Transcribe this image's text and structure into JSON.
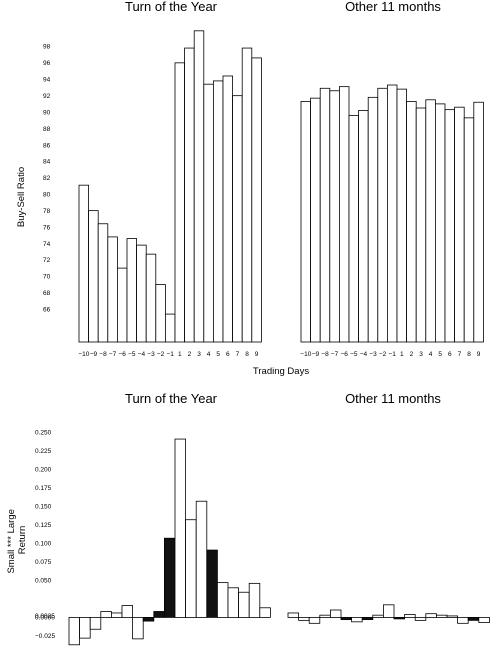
{
  "chart_data": [
    {
      "type": "bar",
      "title": "Turn of the Year",
      "ylabel": "Buy-Sell Ratio",
      "xlabel": "Trading Days",
      "categories": [
        "-10",
        "-9",
        "-8",
        "-7",
        "-6",
        "-5",
        "-4",
        "-3",
        "-2",
        "-1",
        "1",
        "2",
        "3",
        "4",
        "5",
        "6",
        "7",
        "8",
        "9"
      ],
      "values": [
        81.1,
        78.0,
        76.4,
        74.8,
        71.0,
        74.6,
        73.8,
        72.7,
        69.0,
        65.4,
        96.0,
        97.8,
        99.9,
        93.4,
        93.8,
        94.4,
        92.0,
        97.8,
        96.6
      ],
      "ylim": [
        62,
        100
      ],
      "yticks": [
        "66",
        "68",
        "70",
        "72",
        "74",
        "76",
        "78",
        "80",
        "82",
        "84",
        "86",
        "88",
        "90",
        "92",
        "94",
        "96",
        "98"
      ]
    },
    {
      "type": "bar",
      "title": "Other 11 months",
      "categories": [
        "-10",
        "-9",
        "-8",
        "-7",
        "-6",
        "-5",
        "-4",
        "-3",
        "-2",
        "-1",
        "1",
        "2",
        "3",
        "4",
        "5",
        "6",
        "7",
        "8",
        "9"
      ],
      "values": [
        91.3,
        91.7,
        92.9,
        92.6,
        93.1,
        89.6,
        90.2,
        91.8,
        92.9,
        93.3,
        92.8,
        91.3,
        90.5,
        91.5,
        91.0,
        90.3,
        90.6,
        89.3,
        91.2
      ],
      "ylim": [
        62,
        100
      ]
    },
    {
      "type": "bar",
      "title": "Turn of the Year",
      "ylabel": "Small *** Large Return",
      "values": [
        -0.037,
        -0.028,
        -0.016,
        0.008,
        0.006,
        0.016,
        -0.029,
        -0.005,
        0.008,
        0.107,
        0.241,
        0.132,
        0.157,
        0.091,
        0.047,
        0.04,
        0.034,
        0.046,
        0.013
      ],
      "filled": [
        false,
        false,
        false,
        false,
        false,
        false,
        false,
        true,
        true,
        true,
        false,
        false,
        false,
        true,
        false,
        false,
        false,
        false,
        false
      ],
      "ylim": [
        -0.04,
        0.26
      ],
      "yticks": [
        "−0.025",
        "0.0000",
        "0.0025",
        "0.050",
        "0.075",
        "0.100",
        "0.125",
        "0.150",
        "0.175",
        "0.200",
        "0.225",
        "0.250"
      ]
    },
    {
      "type": "bar",
      "title": "Other 11 months",
      "values": [
        0.006,
        -0.004,
        -0.008,
        0.003,
        0.01,
        -0.003,
        -0.006,
        -0.003,
        0.003,
        0.017,
        -0.002,
        0.004,
        -0.004,
        0.005,
        0.003,
        0.002,
        -0.008,
        -0.004,
        -0.007
      ],
      "filled": [
        false,
        false,
        false,
        false,
        false,
        true,
        false,
        true,
        false,
        false,
        true,
        false,
        false,
        false,
        false,
        false,
        false,
        true,
        false
      ],
      "ylim": [
        -0.04,
        0.26
      ]
    }
  ]
}
